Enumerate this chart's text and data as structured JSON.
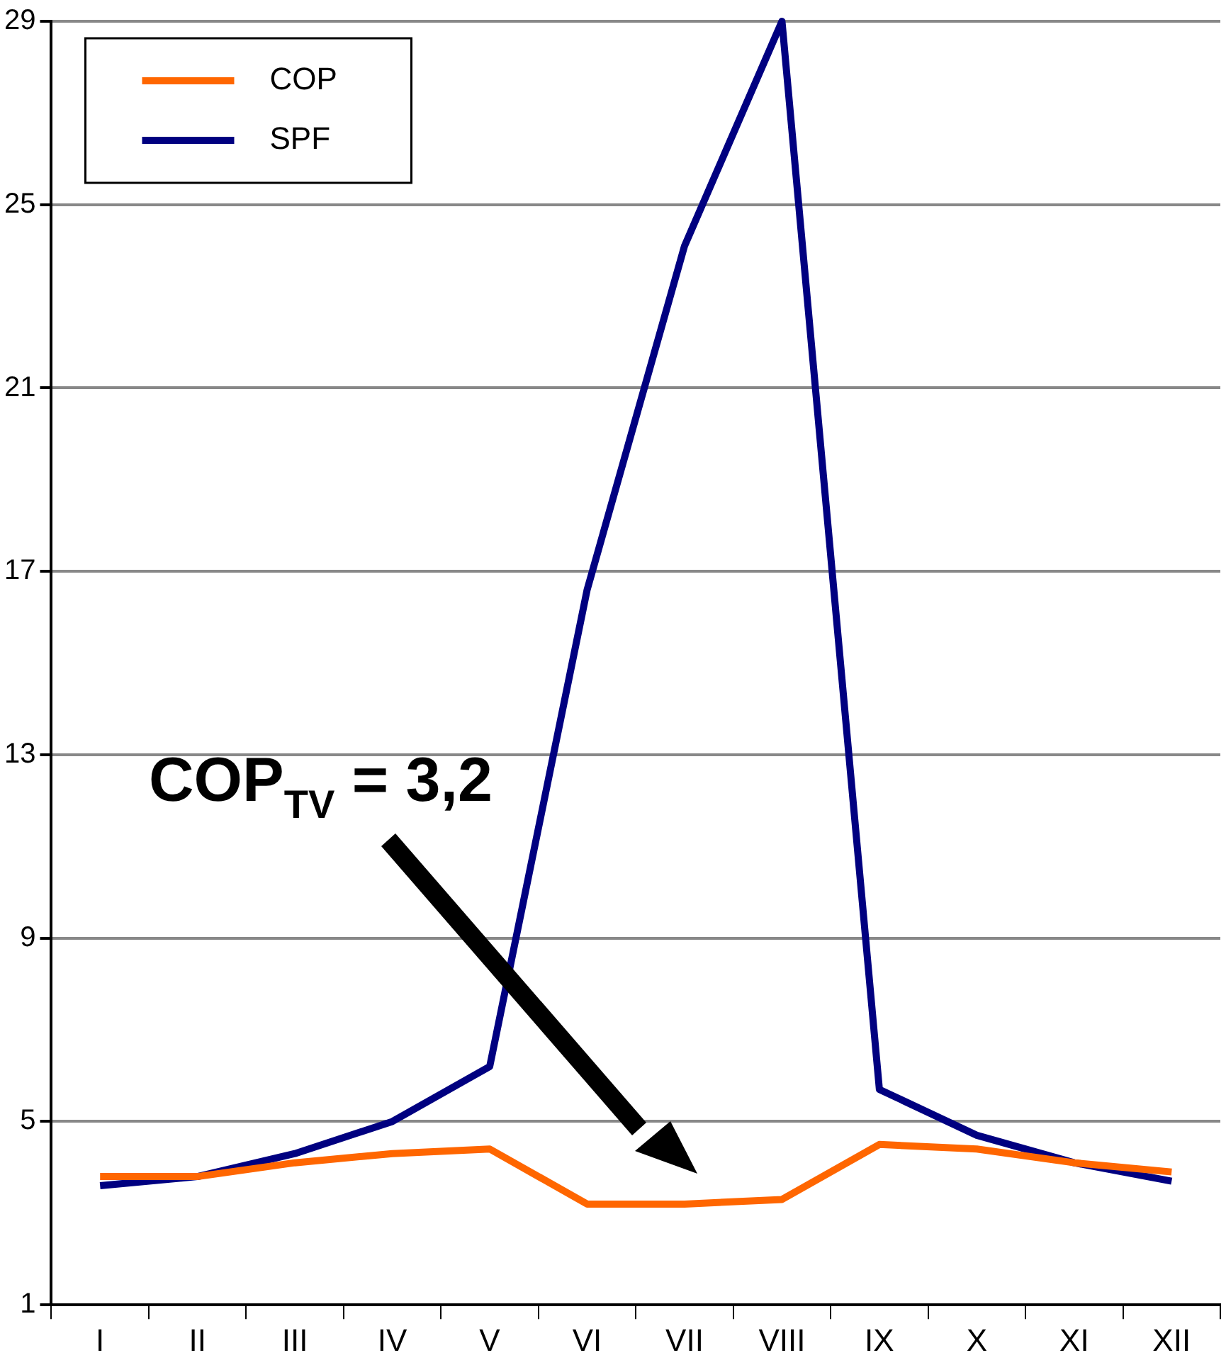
{
  "chart_data": {
    "type": "line",
    "categories": [
      "I",
      "II",
      "III",
      "IV",
      "V",
      "VI",
      "VII",
      "VIII",
      "IX",
      "X",
      "XI",
      "XII"
    ],
    "series": [
      {
        "name": "COP",
        "color": "#ff6600",
        "values": [
          3.8,
          3.8,
          4.1,
          4.3,
          4.4,
          3.2,
          3.2,
          3.3,
          4.5,
          4.4,
          4.1,
          3.9
        ]
      },
      {
        "name": "SPF",
        "color": "#000080",
        "values": [
          3.6,
          3.8,
          4.3,
          5.0,
          6.2,
          16.6,
          24.1,
          29,
          5.7,
          4.7,
          4.1,
          3.7
        ]
      }
    ],
    "ylim": [
      1,
      29
    ],
    "yticks": [
      1,
      5,
      9,
      13,
      17,
      21,
      25,
      29
    ],
    "grid": "y",
    "legend": "top left",
    "marker": "none",
    "line_style": "solid",
    "annotations": [
      "COP$_{TV}$ = 3,2"
    ]
  }
}
